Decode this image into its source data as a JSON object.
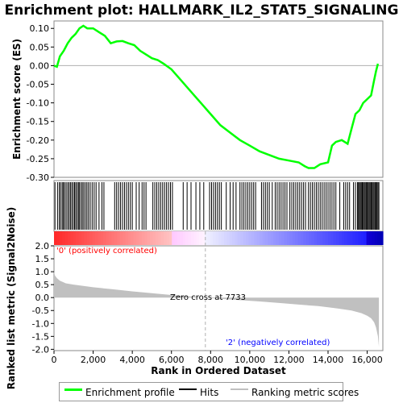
{
  "chart_data": [
    {
      "type": "line",
      "title": "Enrichment plot: HALLMARK_IL2_STAT5_SIGNALING",
      "ylabel": "Enrichment score (ES)",
      "xlim": [
        0,
        16800
      ],
      "ylim": [
        -0.3,
        0.12
      ],
      "yticks": [
        "0.10",
        "0.05",
        "0.00",
        "-0.05",
        "-0.10",
        "-0.15",
        "-0.20",
        "-0.25",
        "-0.30"
      ],
      "ytick_values": [
        0.1,
        0.05,
        0.0,
        -0.05,
        -0.1,
        -0.15,
        -0.2,
        -0.25,
        -0.3
      ],
      "series": [
        {
          "name": "Enrichment profile",
          "color": "#00ff00",
          "x": [
            0,
            150,
            300,
            500,
            700,
            900,
            1100,
            1300,
            1500,
            1700,
            2000,
            2300,
            2600,
            2900,
            3200,
            3500,
            3800,
            4100,
            4400,
            4700,
            5000,
            5300,
            5600,
            6000,
            6500,
            7000,
            7500,
            8000,
            8500,
            9000,
            9500,
            10000,
            10500,
            11000,
            11500,
            12000,
            12500,
            12800,
            13000,
            13300,
            13600,
            14000,
            14200,
            14400,
            14700,
            15000,
            15200,
            15400,
            15600,
            15800,
            16000,
            16200,
            16350,
            16450,
            16550
          ],
          "y": [
            0.0,
            -0.003,
            0.025,
            0.04,
            0.06,
            0.075,
            0.085,
            0.1,
            0.107,
            0.1,
            0.1,
            0.09,
            0.08,
            0.06,
            0.065,
            0.066,
            0.06,
            0.055,
            0.04,
            0.03,
            0.02,
            0.015,
            0.005,
            -0.01,
            -0.04,
            -0.07,
            -0.1,
            -0.13,
            -0.16,
            -0.18,
            -0.2,
            -0.215,
            -0.23,
            -0.24,
            -0.25,
            -0.255,
            -0.26,
            -0.27,
            -0.275,
            -0.275,
            -0.265,
            -0.26,
            -0.215,
            -0.205,
            -0.2,
            -0.21,
            -0.17,
            -0.13,
            -0.12,
            -0.1,
            -0.09,
            -0.08,
            -0.04,
            -0.015,
            0.005
          ]
        }
      ]
    },
    {
      "type": "scatter",
      "title": "",
      "series_name": "Hits",
      "hit_positions": [
        50,
        180,
        270,
        340,
        420,
        480,
        540,
        620,
        700,
        770,
        840,
        910,
        980,
        1050,
        1110,
        1180,
        1250,
        1300,
        1380,
        1450,
        1520,
        1600,
        1680,
        1760,
        1850,
        1950,
        2050,
        2150,
        2300,
        2450,
        2550,
        3100,
        3200,
        3300,
        3400,
        3500,
        3600,
        3700,
        3800,
        3900,
        4000,
        4200,
        4350,
        4500,
        4600,
        4700,
        5050,
        5150,
        5250,
        5350,
        5450,
        5550,
        5650,
        5750,
        5850,
        5950,
        6050,
        6600,
        6800,
        7000,
        7250,
        7450,
        7650,
        7950,
        8050,
        8150,
        8250,
        8350,
        8450,
        8550,
        8800,
        9000,
        9150,
        9300,
        9500,
        9600,
        9700,
        9800,
        9900,
        10000,
        10100,
        10200,
        10300,
        10600,
        10700,
        10800,
        10900,
        11000,
        11150,
        11300,
        11400,
        11500,
        11600,
        11700,
        11800,
        11900,
        12050,
        12150,
        12250,
        12350,
        12450,
        12550,
        12650,
        12750,
        12850,
        13000,
        13100,
        13200,
        13300,
        13400,
        13500,
        13600,
        13700,
        13800,
        13900,
        14000,
        14100,
        14200,
        14300,
        14400,
        14600,
        14800,
        14900,
        15000,
        15100,
        15300,
        15400,
        15500,
        15550,
        15600,
        15650,
        15700,
        15750,
        15800,
        15850,
        15900,
        15950,
        16000,
        16050,
        16100,
        16150,
        16200,
        16250,
        16300,
        16350,
        16400,
        16450,
        16500,
        16550,
        16600
      ]
    },
    {
      "type": "area",
      "title": "",
      "ylabel": "Ranked list metric (Signal2Noise)",
      "xlabel": "Rank in Ordered Dataset",
      "xlim": [
        0,
        16800
      ],
      "ylim": [
        -2.05,
        2.0
      ],
      "xticks": [
        "0",
        "2,000",
        "4,000",
        "6,000",
        "8,000",
        "10,000",
        "12,000",
        "14,000",
        "16,000"
      ],
      "xtick_values": [
        0,
        2000,
        4000,
        6000,
        8000,
        10000,
        12000,
        14000,
        16000
      ],
      "yticks": [
        "2.0",
        "1.5",
        "1.0",
        "0.5",
        "0.0",
        "-0.5",
        "-1.0",
        "-1.5",
        "-2.0"
      ],
      "ytick_values": [
        2.0,
        1.5,
        1.0,
        0.5,
        0.0,
        -0.5,
        -1.0,
        -1.5,
        -2.0
      ],
      "series": [
        {
          "name": "Ranking metric scores",
          "color": "#c0c0c0",
          "x": [
            0,
            50,
            150,
            300,
            600,
            1000,
            2000,
            3000,
            4000,
            5000,
            6000,
            7000,
            7733,
            8500,
            9500,
            10500,
            11500,
            12500,
            13500,
            14500,
            15200,
            15700,
            16000,
            16200,
            16350,
            16450,
            16550,
            16600
          ],
          "y": [
            1.0,
            0.85,
            0.75,
            0.65,
            0.55,
            0.5,
            0.4,
            0.32,
            0.24,
            0.17,
            0.1,
            0.04,
            0.0,
            -0.05,
            -0.1,
            -0.15,
            -0.21,
            -0.27,
            -0.33,
            -0.42,
            -0.5,
            -0.6,
            -0.7,
            -0.8,
            -0.95,
            -1.15,
            -1.5,
            -1.9
          ]
        }
      ],
      "annotations": {
        "positive": "'0' (positively correlated)",
        "negative": "'2' (negatively correlated)",
        "zero_cross": "Zero cross at 7733",
        "zero_cross_x": 7733
      }
    }
  ],
  "legend": {
    "items": [
      {
        "label": "Enrichment profile",
        "color": "#00ff00"
      },
      {
        "label": "Hits",
        "color": "#000000"
      },
      {
        "label": "Ranking metric scores",
        "color": "#c0c0c0"
      }
    ]
  }
}
